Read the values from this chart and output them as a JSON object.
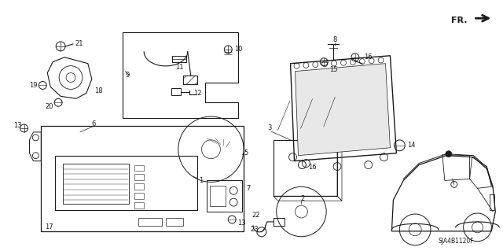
{
  "background_color": "#ffffff",
  "line_color": "#1a1a1a",
  "part_number_text": "SJA4B1120F",
  "fig_width": 6.4,
  "fig_height": 3.19,
  "dpi": 100
}
